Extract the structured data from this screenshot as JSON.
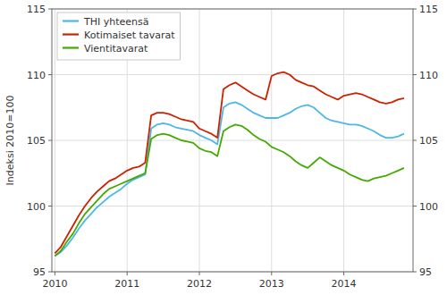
{
  "chart_data": {
    "type": "line",
    "y_label": "Indeksi 2010=100",
    "x": [
      2010,
      2010.083333,
      2010.166667,
      2010.25,
      2010.333333,
      2010.416667,
      2010.5,
      2010.583333,
      2010.666667,
      2010.75,
      2010.833333,
      2010.916667,
      2011,
      2011.083333,
      2011.166667,
      2011.25,
      2011.333333,
      2011.416667,
      2011.5,
      2011.583333,
      2011.666667,
      2011.75,
      2011.833333,
      2011.916667,
      2012,
      2012.083333,
      2012.166667,
      2012.25,
      2012.333333,
      2012.416667,
      2012.5,
      2012.583333,
      2012.666667,
      2012.75,
      2012.833333,
      2012.916667,
      2013,
      2013.083333,
      2013.166667,
      2013.25,
      2013.333333,
      2013.416667,
      2013.5,
      2013.583333,
      2013.666667,
      2013.75,
      2013.833333,
      2013.916667,
      2014,
      2014.083333,
      2014.166667,
      2014.25,
      2014.333333,
      2014.416667,
      2014.5,
      2014.583333,
      2014.666667,
      2014.75,
      2014.833333
    ],
    "series": [
      {
        "name": "THI yhteensä",
        "color": "#4db8e8",
        "values": [
          96.2,
          96.5,
          97.0,
          97.6,
          98.3,
          98.9,
          99.4,
          99.9,
          100.3,
          100.7,
          101.0,
          101.3,
          101.7,
          102.0,
          102.2,
          102.4,
          105.9,
          106.2,
          106.3,
          106.2,
          106.0,
          105.9,
          105.8,
          105.7,
          105.4,
          105.2,
          105.0,
          104.7,
          107.5,
          107.8,
          107.9,
          107.7,
          107.4,
          107.1,
          106.9,
          106.7,
          106.7,
          106.7,
          106.9,
          107.1,
          107.4,
          107.6,
          107.7,
          107.5,
          107.1,
          106.7,
          106.5,
          106.4,
          106.3,
          106.2,
          106.2,
          106.1,
          105.9,
          105.7,
          105.4,
          105.2,
          105.2,
          105.3,
          105.5
        ]
      },
      {
        "name": "Kotimaiset tavarat",
        "color": "#cc2200",
        "values": [
          96.4,
          96.9,
          97.7,
          98.5,
          99.3,
          100.0,
          100.6,
          101.1,
          101.5,
          101.9,
          102.1,
          102.4,
          102.7,
          102.9,
          103.0,
          103.3,
          106.9,
          107.1,
          107.1,
          107.0,
          106.8,
          106.6,
          106.5,
          106.4,
          105.9,
          105.7,
          105.5,
          105.2,
          108.9,
          109.2,
          109.4,
          109.1,
          108.8,
          108.5,
          108.3,
          108.1,
          109.9,
          110.1,
          110.2,
          110.0,
          109.6,
          109.4,
          109.2,
          109.1,
          108.8,
          108.5,
          108.3,
          108.1,
          108.4,
          108.5,
          108.6,
          108.5,
          108.3,
          108.1,
          107.9,
          107.8,
          107.9,
          108.1,
          108.2
        ]
      },
      {
        "name": "Vientitavarat",
        "color": "#44aa00",
        "values": [
          96.2,
          96.6,
          97.3,
          97.9,
          98.7,
          99.4,
          99.9,
          100.4,
          100.9,
          101.3,
          101.5,
          101.7,
          101.9,
          102.1,
          102.3,
          102.5,
          105.1,
          105.4,
          105.5,
          105.4,
          105.2,
          105.0,
          104.9,
          104.8,
          104.4,
          104.2,
          104.1,
          103.8,
          105.7,
          106.0,
          106.2,
          106.1,
          105.8,
          105.4,
          105.1,
          104.9,
          104.5,
          104.3,
          104.1,
          103.8,
          103.4,
          103.1,
          102.9,
          103.3,
          103.7,
          103.4,
          103.1,
          102.9,
          102.7,
          102.4,
          102.2,
          102.0,
          101.9,
          102.1,
          102.2,
          102.3,
          102.5,
          102.7,
          102.9
        ]
      }
    ],
    "xlim": [
      2009.958,
      2014.958
    ],
    "xticks": [
      2010,
      2011,
      2012,
      2013,
      2014
    ],
    "ylim": [
      95,
      115
    ],
    "yticks": [
      95,
      100,
      105,
      110,
      115
    ],
    "y2lim": [
      95,
      115
    ],
    "y2ticks": [
      95,
      100,
      105,
      110,
      115
    ],
    "grid": true,
    "legend": "upper left"
  }
}
